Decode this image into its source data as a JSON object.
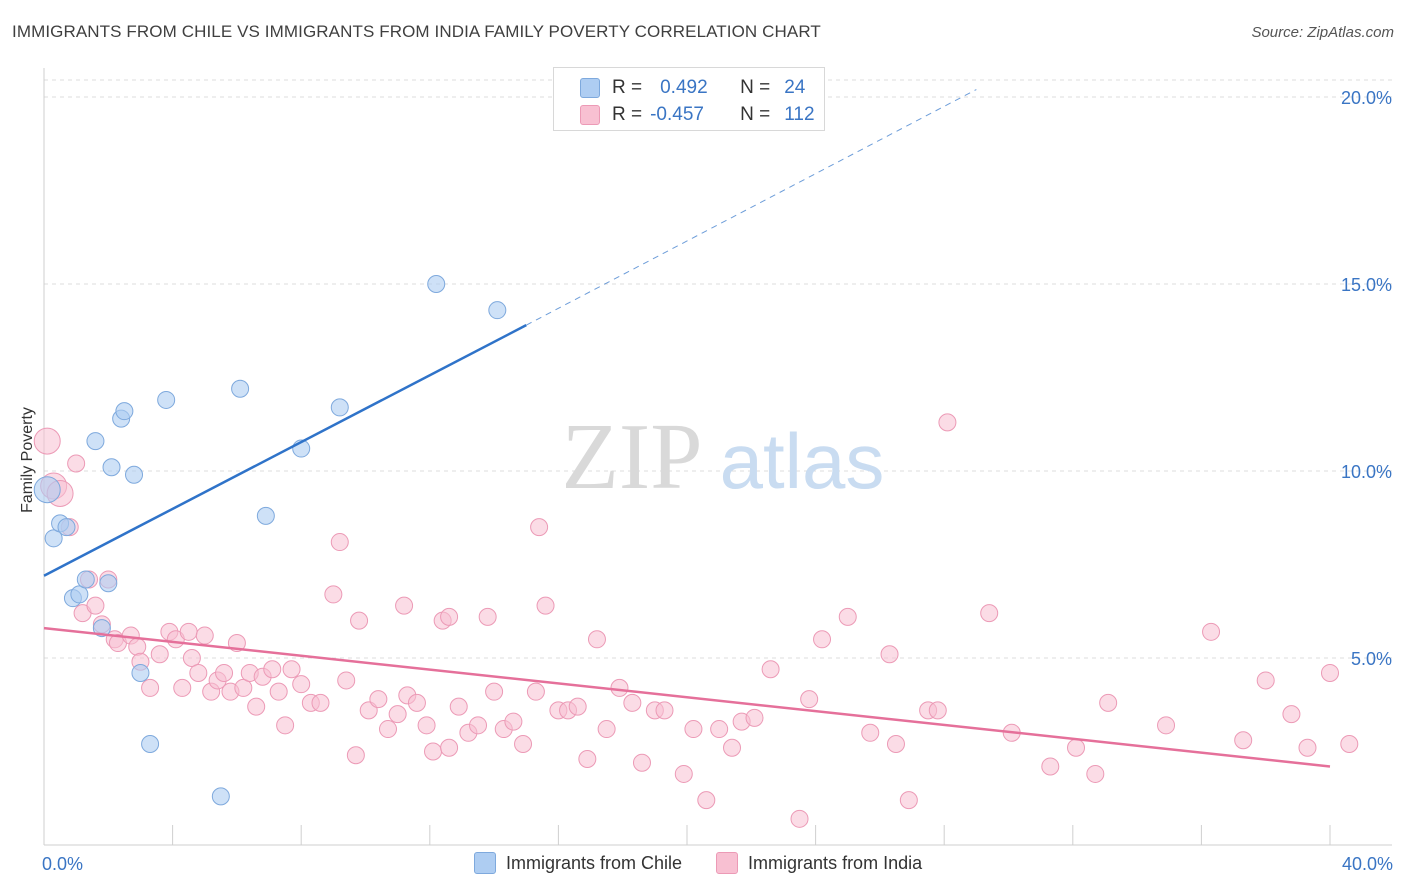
{
  "title": "IMMIGRANTS FROM CHILE VS IMMIGRANTS FROM INDIA FAMILY POVERTY CORRELATION CHART",
  "source": "Source: ZipAtlas.com",
  "watermark": {
    "zip": "ZIP",
    "atlas": "atlas"
  },
  "colors": {
    "chile_fill": "#aecdf2",
    "chile_stroke": "#7ea9dd",
    "chile_line": "#2f73c9",
    "india_fill": "#f8c0d2",
    "india_stroke": "#ec9ab6",
    "india_line": "#e5709a",
    "tick_text": "#3a75c4",
    "grid": "#dcdcdc"
  },
  "legend": {
    "chile": {
      "r_label": "R =",
      "r_value": "0.492",
      "n_label": "N =",
      "n_value": "24"
    },
    "india": {
      "r_label": "R =",
      "r_value": "-0.457",
      "n_label": "N =",
      "n_value": "112"
    }
  },
  "chart_data": {
    "type": "scatter",
    "xlabel": "",
    "ylabel": "Family Poverty",
    "xlim": [
      0,
      40
    ],
    "ylim": [
      0,
      20
    ],
    "x_tick_labels": [
      {
        "value": 0,
        "label": "0.0%"
      },
      {
        "value": 40,
        "label": "40.0%"
      }
    ],
    "y_tick_labels": [
      {
        "value": 5,
        "label": "5.0%"
      },
      {
        "value": 10,
        "label": "10.0%"
      },
      {
        "value": 15,
        "label": "15.0%"
      },
      {
        "value": 20,
        "label": "20.0%"
      }
    ],
    "grid": true,
    "legend_position": "top-center",
    "series": [
      {
        "name": "Immigrants from Chile",
        "points": [
          [
            0.1,
            9.5
          ],
          [
            0.3,
            8.2
          ],
          [
            0.5,
            8.6
          ],
          [
            0.7,
            8.5
          ],
          [
            0.9,
            6.6
          ],
          [
            1.1,
            6.7
          ],
          [
            1.3,
            7.1
          ],
          [
            1.6,
            10.8
          ],
          [
            1.8,
            5.8
          ],
          [
            2.0,
            7.0
          ],
          [
            2.1,
            10.1
          ],
          [
            2.4,
            11.4
          ],
          [
            2.5,
            11.6
          ],
          [
            2.8,
            9.9
          ],
          [
            3.0,
            4.6
          ],
          [
            3.3,
            2.7
          ],
          [
            3.8,
            11.9
          ],
          [
            5.5,
            1.3
          ],
          [
            6.1,
            12.2
          ],
          [
            6.9,
            8.8
          ],
          [
            8.0,
            10.6
          ],
          [
            9.2,
            11.7
          ],
          [
            12.2,
            15.0
          ],
          [
            14.1,
            14.3
          ]
        ],
        "trend": {
          "x": [
            0,
            15
          ],
          "y": [
            7.2,
            13.9
          ]
        },
        "trend_extension": {
          "x": [
            15,
            29
          ],
          "y": [
            13.9,
            20.2
          ]
        }
      },
      {
        "name": "Immigrants from India",
        "points": [
          [
            0.1,
            10.8
          ],
          [
            0.3,
            9.6
          ],
          [
            0.5,
            9.4
          ],
          [
            0.8,
            8.5
          ],
          [
            1.0,
            10.2
          ],
          [
            1.2,
            6.2
          ],
          [
            1.4,
            7.1
          ],
          [
            1.6,
            6.4
          ],
          [
            1.8,
            5.9
          ],
          [
            2.0,
            7.1
          ],
          [
            2.2,
            5.5
          ],
          [
            2.3,
            5.4
          ],
          [
            2.7,
            5.6
          ],
          [
            2.9,
            5.3
          ],
          [
            3.0,
            4.9
          ],
          [
            3.3,
            4.2
          ],
          [
            3.6,
            5.1
          ],
          [
            3.9,
            5.7
          ],
          [
            4.1,
            5.5
          ],
          [
            4.3,
            4.2
          ],
          [
            4.5,
            5.7
          ],
          [
            4.6,
            5.0
          ],
          [
            4.8,
            4.6
          ],
          [
            5.0,
            5.6
          ],
          [
            5.2,
            4.1
          ],
          [
            5.4,
            4.4
          ],
          [
            5.6,
            4.6
          ],
          [
            5.8,
            4.1
          ],
          [
            6.0,
            5.4
          ],
          [
            6.2,
            4.2
          ],
          [
            6.4,
            4.6
          ],
          [
            6.6,
            3.7
          ],
          [
            6.8,
            4.5
          ],
          [
            7.1,
            4.7
          ],
          [
            7.3,
            4.1
          ],
          [
            7.5,
            3.2
          ],
          [
            7.7,
            4.7
          ],
          [
            8.0,
            4.3
          ],
          [
            8.3,
            3.8
          ],
          [
            8.6,
            3.8
          ],
          [
            9.0,
            6.7
          ],
          [
            9.4,
            4.4
          ],
          [
            9.7,
            2.4
          ],
          [
            10.1,
            3.6
          ],
          [
            10.4,
            3.9
          ],
          [
            10.7,
            3.1
          ],
          [
            11.0,
            3.5
          ],
          [
            11.3,
            4.0
          ],
          [
            11.6,
            3.8
          ],
          [
            11.9,
            3.2
          ],
          [
            12.1,
            2.5
          ],
          [
            12.4,
            6.0
          ],
          [
            12.6,
            2.6
          ],
          [
            12.9,
            3.7
          ],
          [
            13.2,
            3.0
          ],
          [
            13.5,
            3.2
          ],
          [
            13.8,
            6.1
          ],
          [
            14.0,
            4.1
          ],
          [
            14.3,
            3.1
          ],
          [
            14.6,
            3.3
          ],
          [
            14.9,
            2.7
          ],
          [
            15.3,
            4.1
          ],
          [
            15.6,
            6.4
          ],
          [
            16.0,
            3.6
          ],
          [
            16.3,
            3.6
          ],
          [
            16.6,
            3.7
          ],
          [
            16.9,
            2.3
          ],
          [
            17.2,
            5.5
          ],
          [
            17.5,
            3.1
          ],
          [
            17.9,
            4.2
          ],
          [
            18.3,
            3.8
          ],
          [
            18.6,
            2.2
          ],
          [
            19.0,
            3.6
          ],
          [
            19.3,
            3.6
          ],
          [
            19.9,
            1.9
          ],
          [
            20.2,
            3.1
          ],
          [
            20.6,
            1.2
          ],
          [
            21.0,
            3.1
          ],
          [
            21.4,
            2.6
          ],
          [
            21.7,
            3.3
          ],
          [
            22.1,
            3.4
          ],
          [
            22.6,
            4.7
          ],
          [
            23.5,
            0.7
          ],
          [
            23.8,
            3.9
          ],
          [
            24.2,
            5.5
          ],
          [
            25.0,
            6.1
          ],
          [
            25.7,
            3.0
          ],
          [
            26.3,
            5.1
          ],
          [
            26.5,
            2.7
          ],
          [
            26.9,
            1.2
          ],
          [
            27.5,
            3.6
          ],
          [
            28.1,
            11.3
          ],
          [
            9.2,
            8.1
          ],
          [
            9.8,
            6.0
          ],
          [
            11.2,
            6.4
          ],
          [
            12.6,
            6.1
          ],
          [
            15.4,
            8.5
          ],
          [
            27.8,
            3.6
          ],
          [
            29.4,
            6.2
          ],
          [
            30.1,
            3.0
          ],
          [
            31.3,
            2.1
          ],
          [
            32.1,
            2.6
          ],
          [
            32.7,
            1.9
          ],
          [
            33.1,
            3.8
          ],
          [
            34.9,
            3.2
          ],
          [
            36.3,
            5.7
          ],
          [
            37.3,
            2.8
          ],
          [
            38.0,
            4.4
          ],
          [
            38.8,
            3.5
          ],
          [
            39.3,
            2.6
          ],
          [
            40.0,
            4.6
          ],
          [
            40.6,
            2.7
          ]
        ],
        "trend": {
          "x": [
            0,
            40
          ],
          "y": [
            5.8,
            2.1
          ]
        }
      }
    ]
  },
  "bottom_legend": {
    "chile_label": "Immigrants from Chile",
    "india_label": "Immigrants from India"
  }
}
